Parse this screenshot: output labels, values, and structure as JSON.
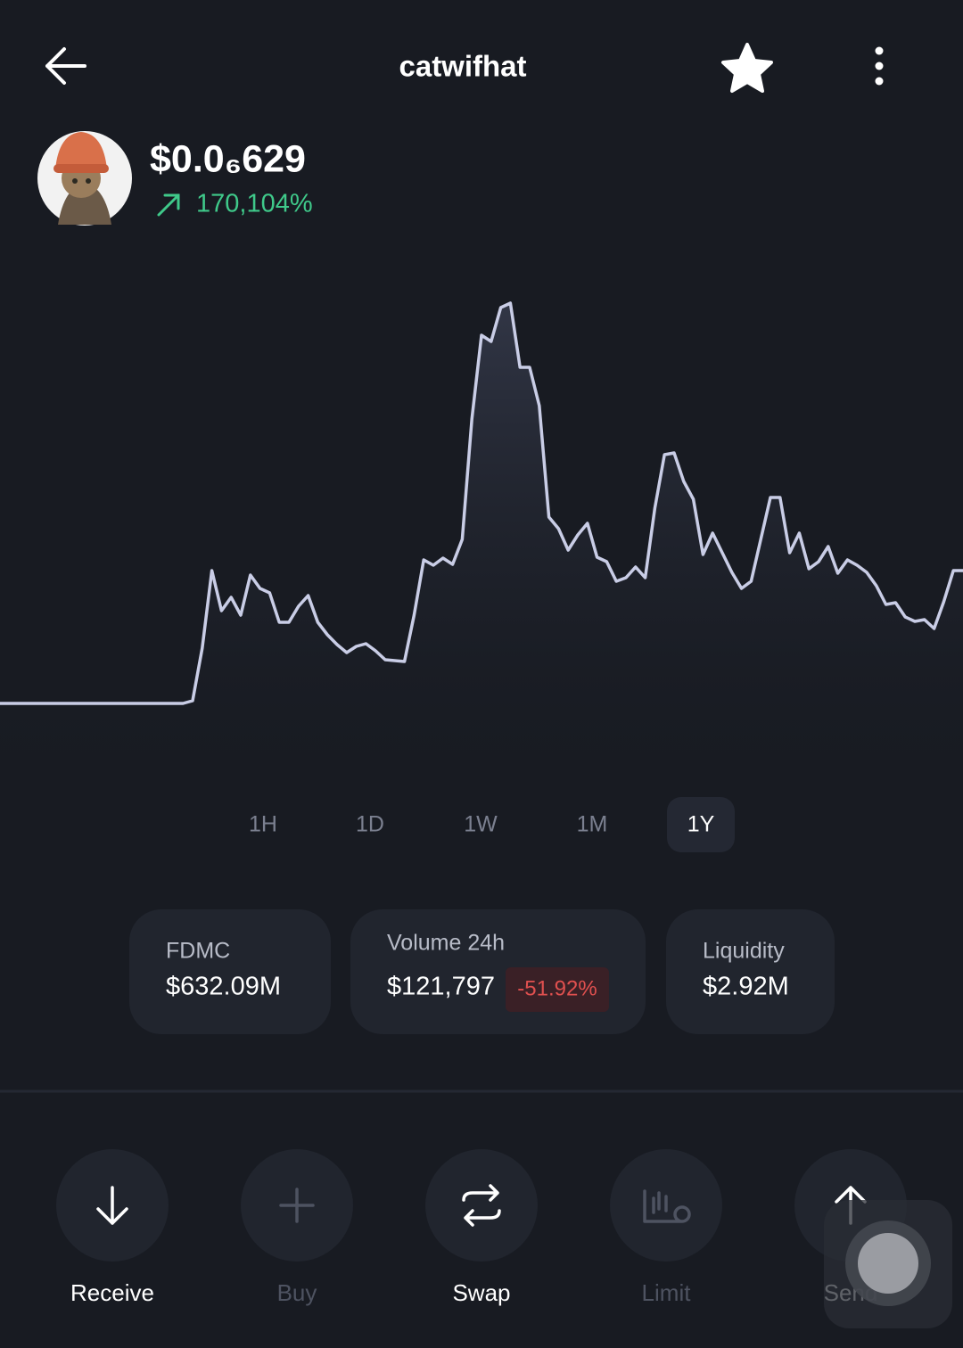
{
  "header": {
    "title": "catwifhat"
  },
  "token": {
    "price": "$0.0₆629",
    "change": "170,104%"
  },
  "chart_data": {
    "type": "line",
    "color": "#c9cde6",
    "ylim": [
      0,
      100
    ],
    "values": [
      2.2,
      2.2,
      2.2,
      2.2,
      2.2,
      2.2,
      2.2,
      2.2,
      2.2,
      2.2,
      2.2,
      2.2,
      2.2,
      2.2,
      2.2,
      2.2,
      2.2,
      2.2,
      2.2,
      2.2,
      2.8,
      14.6,
      32,
      23,
      26,
      22,
      31,
      28,
      27,
      20.4,
      20.4,
      24,
      26.4,
      20.4,
      17.6,
      15.4,
      13.6,
      15,
      15.6,
      14,
      12,
      11.8,
      11.6,
      22,
      34.4,
      33.2,
      34.8,
      33.4,
      39,
      66,
      84.8,
      83.4,
      91,
      92,
      77.6,
      77.6,
      69,
      44,
      41.4,
      36.6,
      40,
      42.6,
      35,
      34,
      29.6,
      30.4,
      32.8,
      30.4,
      46,
      58,
      58.4,
      52,
      48,
      35.6,
      40.4,
      36,
      31.6,
      28,
      29.6,
      39,
      48.4,
      48.4,
      36,
      40.4,
      32.4,
      34,
      37.4,
      31.4,
      34.4,
      33.2,
      31.6,
      28.6,
      24.4,
      24.8,
      21.6,
      20.6,
      21,
      19,
      25,
      32,
      32
    ]
  },
  "timeframes": {
    "options": [
      "1H",
      "1D",
      "1W",
      "1M",
      "1Y"
    ],
    "selected": 4
  },
  "stats": [
    {
      "label": "FDMC",
      "value": "$632.09M"
    },
    {
      "label": "Volume 24h",
      "value": "$121,797",
      "change": "-51.92%"
    },
    {
      "label": "Liquidity",
      "value": "$2.92M"
    }
  ],
  "actions": [
    {
      "label": "Receive",
      "enabled": true
    },
    {
      "label": "Buy",
      "enabled": false
    },
    {
      "label": "Swap",
      "enabled": true
    },
    {
      "label": "Limit",
      "enabled": false
    },
    {
      "label": "Send",
      "enabled": true
    }
  ]
}
